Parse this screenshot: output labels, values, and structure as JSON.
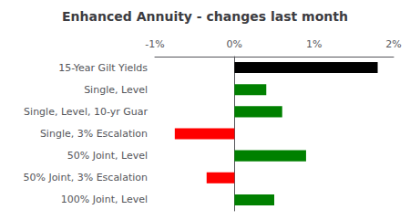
{
  "chart_data": {
    "type": "bar",
    "orientation": "horizontal",
    "title": "Enhanced Annuity - changes last month",
    "categories": [
      "100% Joint, Level",
      "50% Joint, 3% Escalation",
      "50% Joint, Level",
      "Single, 3% Escalation",
      "Single, Level, 10-yr Guar",
      "Single, Level",
      "15-Year Gilt Yields"
    ],
    "values": [
      0.5,
      -0.35,
      0.9,
      -0.75,
      0.6,
      0.4,
      1.8
    ],
    "colors": [
      "#008000",
      "#ff0000",
      "#008000",
      "#ff0000",
      "#008000",
      "#008000",
      "#000000"
    ],
    "xlim": [
      -1.0,
      2.0
    ],
    "xticks": [
      {
        "value": -1.0,
        "label": "-1%"
      },
      {
        "value": 0.0,
        "label": "0%"
      },
      {
        "value": 1.0,
        "label": "1%"
      },
      {
        "value": 2.0,
        "label": "2%"
      }
    ],
    "grid": false
  }
}
